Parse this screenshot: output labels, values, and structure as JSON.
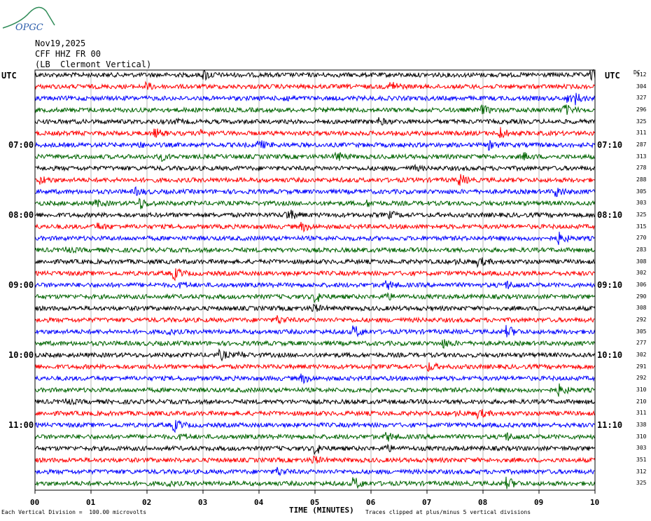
{
  "header": {
    "date": "Nov19,2025",
    "station": "CFF HHZ FR 00",
    "location": "(LB  Clermont Vertical)"
  },
  "logo_text": "OPGC",
  "utc_label_left": "UTC",
  "utc_label_right": "UTC",
  "dc_label": "DC",
  "chart_data": {
    "type": "line",
    "title": "Nov19,2025 CFF HHZ FR 00 (LB  Clermont Vertical)",
    "xlabel": "TIME (MINUTES)",
    "x_ticks": [
      "00",
      "01",
      "02",
      "03",
      "04",
      "05",
      "06",
      "07",
      "08",
      "09",
      "10"
    ],
    "xlim": [
      0,
      10
    ],
    "left_time_labels": [
      "07:00",
      "08:00",
      "09:00",
      "10:00",
      "11:00"
    ],
    "right_time_labels": [
      "07:10",
      "08:10",
      "09:10",
      "10:10",
      "11:10"
    ],
    "trace_colors": [
      "#000000",
      "#ff0000",
      "#0000ff",
      "#006400"
    ],
    "grid": true,
    "dc_values": [
      "312",
      "304",
      "327",
      "296",
      "325",
      "311",
      "287",
      "313",
      "278",
      "288",
      "305",
      "303",
      "325",
      "315",
      "270",
      "283",
      "308",
      "302",
      "306",
      "290",
      "308",
      "292",
      "305",
      "277",
      "302",
      "291",
      "292",
      "310",
      "210",
      "311",
      "338",
      "310",
      "303",
      "351",
      "312",
      "325"
    ]
  },
  "footer": {
    "left": "Each Vertical Division =  100.00 microvolts",
    "right": "Traces clipped at plus/minus 5 vertical divisions"
  }
}
